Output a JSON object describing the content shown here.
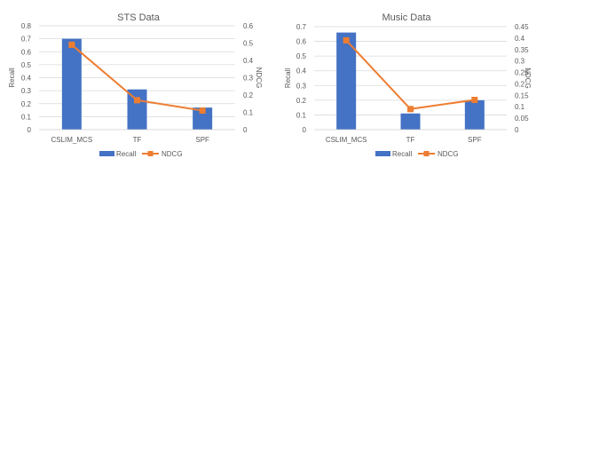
{
  "chart_data": [
    {
      "type": "bar",
      "title": "STS Data",
      "categories": [
        "CSLIM_MCS",
        "TF",
        "SPF"
      ],
      "ylabel": "Recall",
      "y2label": "NDCG",
      "ylim": [
        0,
        0.8
      ],
      "yticks": [
        "0",
        "0.1",
        "0.2",
        "0.3",
        "0.4",
        "0.5",
        "0.6",
        "0.7",
        "0.8"
      ],
      "y2lim": [
        0,
        0.6
      ],
      "y2ticks": [
        "0",
        "0.1",
        "0.2",
        "0.3",
        "0.4",
        "0.5",
        "0.6"
      ],
      "series": [
        {
          "name": "Recall",
          "kind": "bar",
          "axis": "left",
          "color": "#4472C4",
          "values": [
            0.7,
            0.31,
            0.17
          ]
        },
        {
          "name": "NDCG",
          "kind": "line",
          "axis": "right",
          "color": "#ED7D31",
          "values": [
            0.49,
            0.17,
            0.11
          ]
        }
      ],
      "legend": "bottom",
      "grid": true
    },
    {
      "type": "bar",
      "title": "Music Data",
      "categories": [
        "CSLIM_MCS",
        "TF",
        "SPF"
      ],
      "ylabel": "Recall",
      "y2label": "NDCG",
      "ylim": [
        0,
        0.7
      ],
      "yticks": [
        "0",
        "0.1",
        "0.2",
        "0.3",
        "0.4",
        "0.5",
        "0.6",
        "0.7"
      ],
      "y2lim": [
        0,
        0.45
      ],
      "y2ticks": [
        "0",
        "0.05",
        "0.1",
        "0.15",
        "0.2",
        "0.25",
        "0.3",
        "0.35",
        "0.4",
        "0.45"
      ],
      "series": [
        {
          "name": "Recall",
          "kind": "bar",
          "axis": "left",
          "color": "#4472C4",
          "values": [
            0.66,
            0.11,
            0.2
          ]
        },
        {
          "name": "NDCG",
          "kind": "line",
          "axis": "right",
          "color": "#ED7D31",
          "values": [
            0.39,
            0.09,
            0.13
          ]
        }
      ],
      "legend": "bottom",
      "grid": true
    }
  ]
}
